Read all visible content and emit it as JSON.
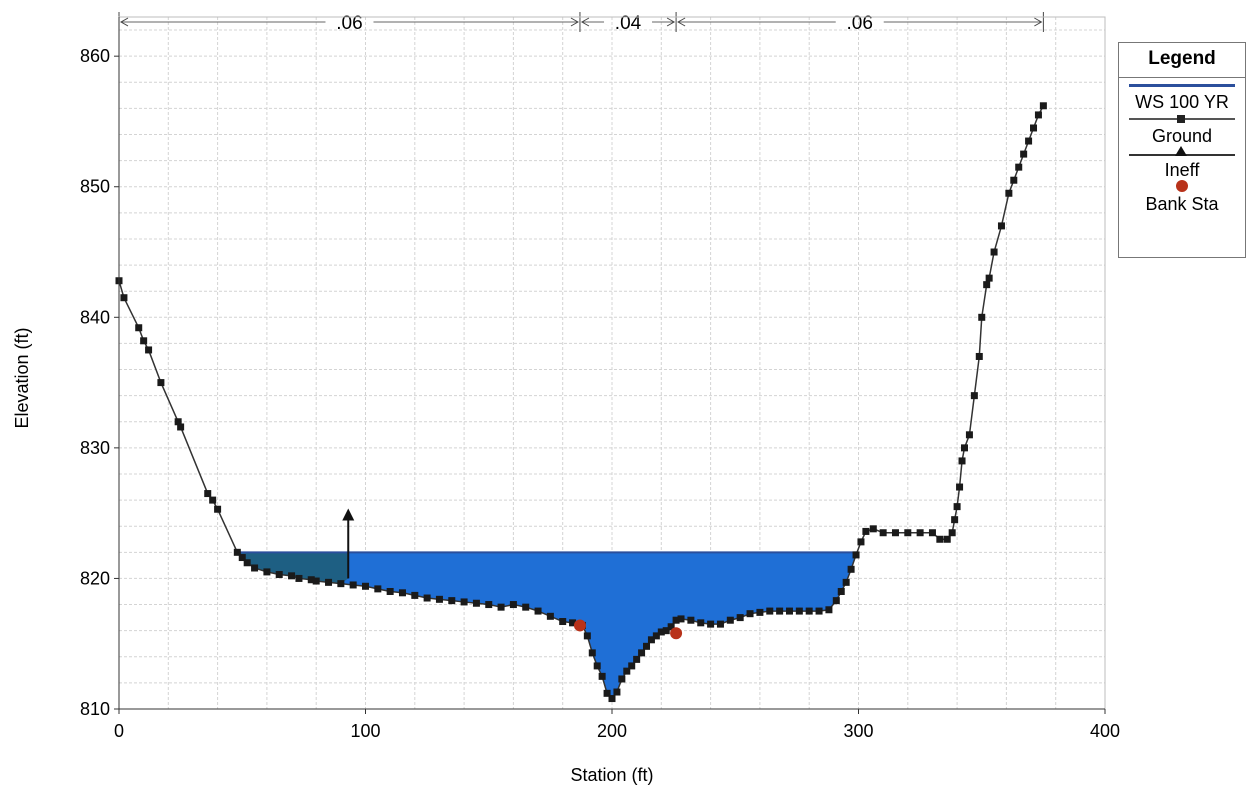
{
  "chart_data": {
    "type": "area",
    "title": "",
    "xlabel": "Station (ft)",
    "ylabel": "Elevation (ft)",
    "xlim": [
      0,
      400
    ],
    "ylim": [
      810,
      863
    ],
    "xticks": [
      "0",
      "100",
      "200",
      "300",
      "400"
    ],
    "yticks": [
      "810",
      "820",
      "830",
      "840",
      "850",
      "860"
    ],
    "x_tick_values": [
      0,
      100,
      200,
      300,
      400
    ],
    "y_tick_values": [
      810,
      820,
      830,
      840,
      850,
      860
    ],
    "grid": true,
    "legend_position": "right",
    "water_surface": {
      "name": "WS 100 YR",
      "elevation": 822.0
    },
    "ground": {
      "name": "Ground",
      "x": [
        0,
        2,
        8,
        10,
        12,
        17,
        24,
        25,
        36,
        38,
        40,
        48,
        50,
        52,
        55,
        60,
        65,
        70,
        73,
        78,
        80,
        85,
        90,
        95,
        100,
        105,
        110,
        115,
        120,
        125,
        130,
        135,
        140,
        145,
        150,
        155,
        160,
        165,
        170,
        175,
        180,
        184,
        188,
        190,
        192,
        194,
        196,
        198,
        200,
        202,
        204,
        206,
        208,
        210,
        212,
        214,
        216,
        218,
        220,
        222,
        224,
        226,
        228,
        232,
        236,
        240,
        244,
        248,
        252,
        256,
        260,
        264,
        268,
        272,
        276,
        280,
        284,
        288,
        291,
        293,
        295,
        297,
        299,
        301,
        303,
        306,
        310,
        315,
        320,
        325,
        330,
        333,
        336,
        338,
        339,
        340,
        341,
        342,
        343,
        345,
        347,
        349,
        350,
        352,
        353,
        355,
        358,
        361,
        363,
        365,
        367,
        369,
        371,
        373,
        375
      ],
      "y": [
        842.8,
        841.5,
        839.2,
        838.2,
        837.5,
        835.0,
        832.0,
        831.6,
        826.5,
        826.0,
        825.3,
        822.0,
        821.6,
        821.2,
        820.8,
        820.5,
        820.3,
        820.2,
        820.0,
        819.9,
        819.8,
        819.7,
        819.6,
        819.5,
        819.4,
        819.2,
        819.0,
        818.9,
        818.7,
        818.5,
        818.4,
        818.3,
        818.2,
        818.1,
        818.0,
        817.8,
        818.0,
        817.8,
        817.5,
        817.1,
        816.7,
        816.6,
        816.4,
        815.6,
        814.3,
        813.3,
        812.5,
        811.2,
        810.8,
        811.3,
        812.3,
        812.9,
        813.3,
        813.8,
        814.3,
        814.8,
        815.3,
        815.6,
        815.9,
        816.0,
        816.3,
        816.8,
        816.9,
        816.8,
        816.6,
        816.5,
        816.5,
        816.8,
        817.0,
        817.3,
        817.4,
        817.5,
        817.5,
        817.5,
        817.5,
        817.5,
        817.5,
        817.6,
        818.3,
        819.0,
        819.7,
        820.7,
        821.8,
        822.8,
        823.6,
        823.8,
        823.5,
        823.5,
        823.5,
        823.5,
        823.5,
        823.0,
        823.0,
        823.5,
        824.5,
        825.5,
        827.0,
        829.0,
        830.0,
        831.0,
        834.0,
        837.0,
        840.0,
        842.5,
        843.0,
        845.0,
        847.0,
        849.5,
        850.5,
        851.5,
        852.5,
        853.5,
        854.5,
        855.5,
        856.2
      ]
    },
    "ineffective_flow": {
      "name": "Ineff",
      "station": 93,
      "elevation": 825.2,
      "from_elevation": 820.0,
      "left_station": 50
    },
    "bank_stations": {
      "name": "Bank Sta",
      "points": [
        [
          187,
          816.4
        ],
        [
          226,
          815.8
        ]
      ]
    },
    "mannings_n": [
      {
        "label": ".06",
        "from": 0,
        "to": 187
      },
      {
        "label": ".04",
        "from": 187,
        "to": 226
      },
      {
        "label": ".06",
        "from": 226,
        "to": 375
      }
    ],
    "colors": {
      "water": "#1f6fd6",
      "ineffective_water": "#1e5f83",
      "ws_line": "#2b4f9c",
      "ground": "#1a1a1a",
      "bank": "#b8321a",
      "grid": "#d4d4d4"
    }
  },
  "legend": {
    "title": "Legend",
    "items": [
      {
        "label": "WS 100 YR",
        "icon": "line-icon"
      },
      {
        "label": "Ground",
        "icon": "square-marker-icon"
      },
      {
        "label": "Ineff",
        "icon": "triangle-marker-icon"
      },
      {
        "label": "Bank Sta",
        "icon": "circle-marker-icon"
      }
    ]
  }
}
